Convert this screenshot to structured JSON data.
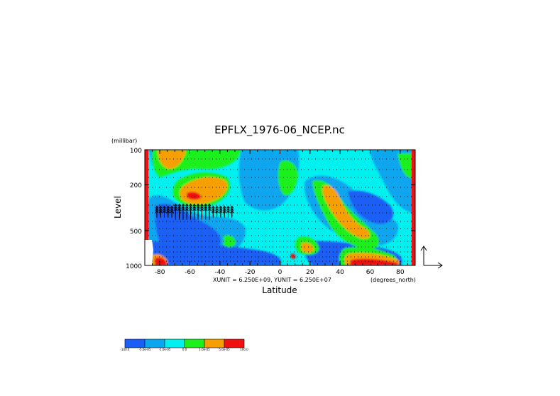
{
  "chart_data": {
    "type": "heatmap",
    "title": "EPFLX_1976-06_NCEP.nc",
    "xlabel": "Latitude",
    "ylabel": "Level",
    "x_units": "(degrees_north)",
    "y_units": "(millibar)",
    "xlim": [
      -90,
      90
    ],
    "ylim": [
      1000,
      100
    ],
    "y_scale": "log",
    "x_ticks": [
      "-80",
      "-60",
      "-40",
      "-20",
      "0",
      "20",
      "40",
      "60",
      "80"
    ],
    "y_ticks": [
      "100",
      "200",
      "500",
      "1000"
    ],
    "vector_scale_text": "XUNIT = 6.250E+09, YUNIT = 6.250E+07",
    "grid": false,
    "legend_placement": "bottom-left",
    "levels": [
      "-100.0",
      "-5.0e-05",
      "-1.0e-05",
      "0.0",
      "1.0e-05",
      "5.0e-05",
      "100.0"
    ],
    "colors": [
      "#1b5ef5",
      "#0aa6ef",
      "#00f0f0",
      "#1ef01e",
      "#f5a000",
      "#f01010"
    ],
    "background_class": "-1.0e-05 to 0.0"
  }
}
